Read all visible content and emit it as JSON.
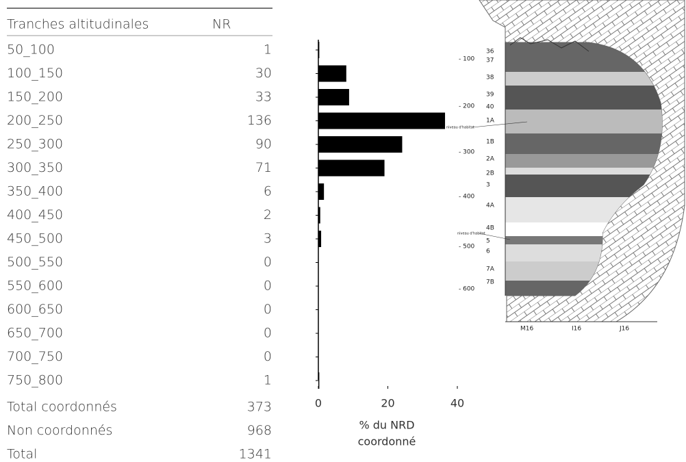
{
  "table": {
    "header": [
      "Tranches altitudinales",
      "NR"
    ],
    "rows": [
      [
        "50_100",
        1
      ],
      [
        "100_150",
        30
      ],
      [
        "150_200",
        33
      ],
      [
        "200_250",
        136
      ],
      [
        "250_300",
        90
      ],
      [
        "300_350",
        71
      ],
      [
        "350_400",
        6
      ],
      [
        "400_450",
        2
      ],
      [
        "450_500",
        3
      ],
      [
        "500_550",
        0
      ],
      [
        "550_600",
        0
      ],
      [
        "600_650",
        0
      ],
      [
        "650_700",
        0
      ],
      [
        "700_750",
        0
      ],
      [
        "750_800",
        1
      ]
    ],
    "totals": [
      [
        "Total coordonnés",
        373
      ],
      [
        "Non coordonnés",
        968
      ],
      [
        "Total",
        1341
      ]
    ]
  },
  "chart_data": {
    "type": "barh",
    "values": [
      0.27,
      8.04,
      8.85,
      36.46,
      24.13,
      19.03,
      1.61,
      0.54,
      0.8,
      0,
      0,
      0,
      0,
      0,
      0.27
    ],
    "color": "#000000",
    "xlim": [
      0,
      40
    ],
    "xticks": [
      0,
      20,
      40
    ],
    "xlabel": [
      "% du NRD",
      "coordonné"
    ]
  },
  "section": {
    "layers": [
      "36",
      "37",
      "38",
      "39",
      "40",
      "1A",
      "1B",
      "2A",
      "2B",
      "3",
      "4A",
      "4B",
      "5",
      "6",
      "7A",
      "7B"
    ],
    "depths": [
      "- 100",
      "- 200",
      "- 300",
      "- 400",
      "- 500",
      "- 600"
    ],
    "squares": [
      "M16",
      "I16",
      "J16"
    ],
    "notes": [
      "niveau d'habitat",
      "niveau d'habitat"
    ]
  }
}
